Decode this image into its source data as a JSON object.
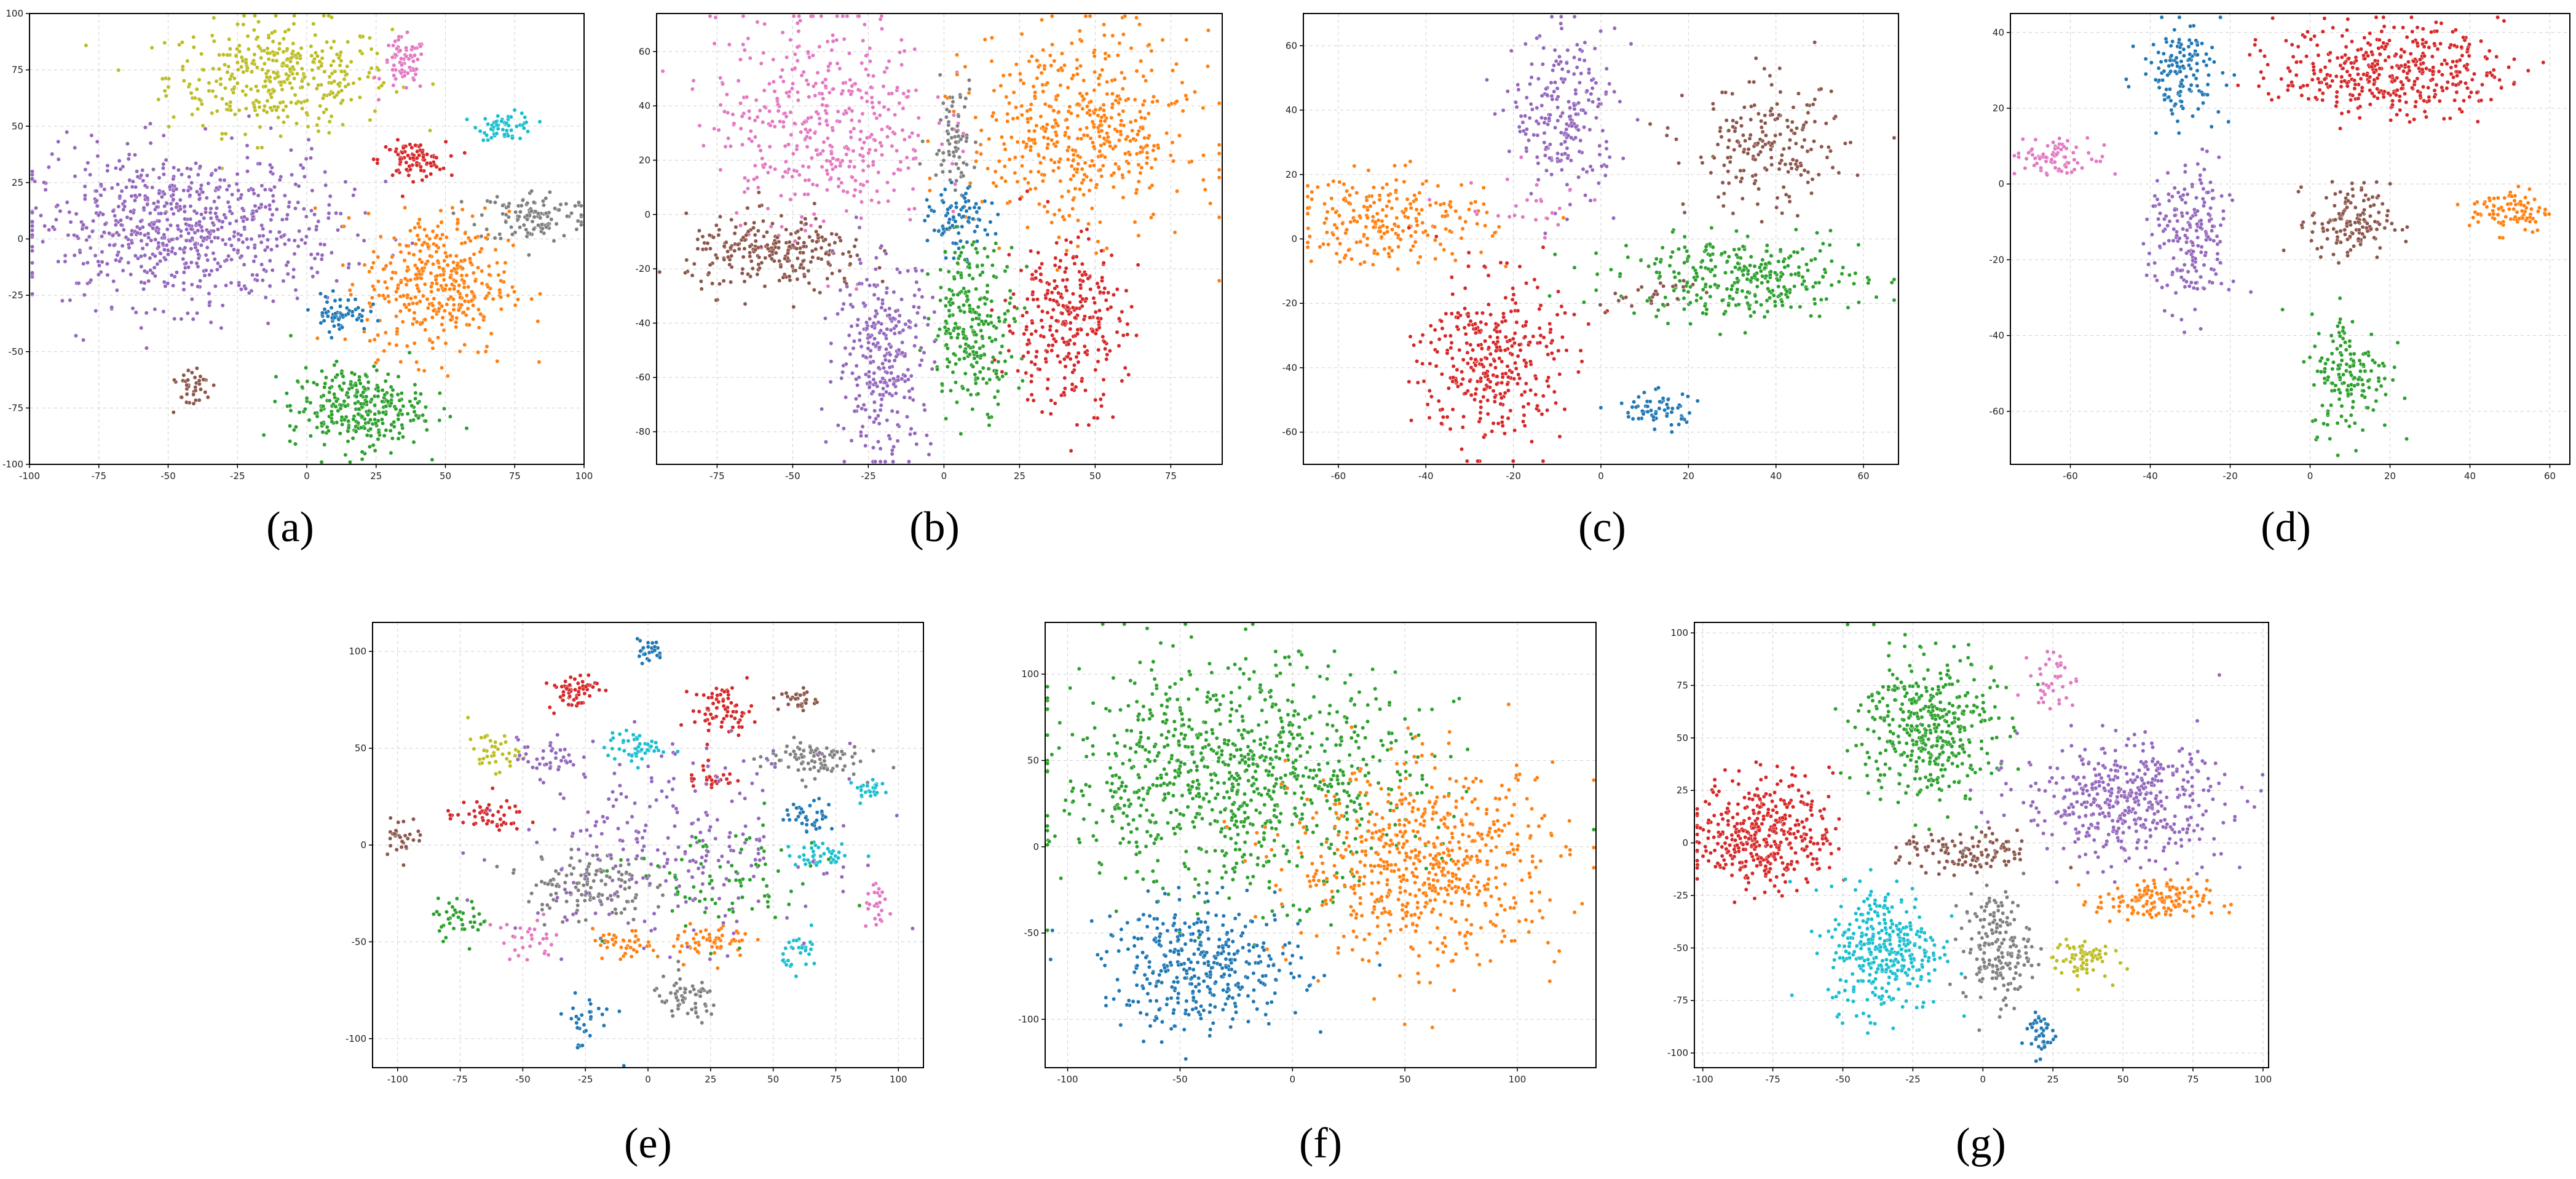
{
  "colors": {
    "blue": "#1f77b4",
    "orange": "#ff7f0e",
    "green": "#2ca02c",
    "red": "#d62728",
    "purple": "#9467bd",
    "brown": "#8c564b",
    "pink": "#e377c2",
    "gray": "#7f7f7f",
    "olive": "#bcbd22",
    "cyan": "#17becf"
  },
  "chart_data": [
    {
      "label": "(a)",
      "type": "scatter",
      "grid": true,
      "xlim": [
        -100,
        100
      ],
      "ylim": [
        -100,
        100
      ],
      "xticks": [
        -100,
        -75,
        -50,
        -25,
        0,
        25,
        50,
        75,
        100
      ],
      "yticks": [
        -100,
        -75,
        -50,
        -25,
        0,
        25,
        50,
        75,
        100
      ],
      "clusters": [
        {
          "color": "olive",
          "x": -10,
          "y": 72,
          "sx": 20,
          "sy": 12,
          "n": 380
        },
        {
          "color": "pink",
          "x": 35,
          "y": 77,
          "sx": 4,
          "sy": 6,
          "n": 70
        },
        {
          "color": "cyan",
          "x": 72,
          "y": 50,
          "sx": 5,
          "sy": 3,
          "n": 60
        },
        {
          "color": "red",
          "x": 38,
          "y": 35,
          "sx": 6,
          "sy": 4,
          "n": 90
        },
        {
          "color": "gray",
          "x": 82,
          "y": 10,
          "sx": 10,
          "sy": 6,
          "n": 120
        },
        {
          "color": "purple",
          "x": -45,
          "y": 5,
          "sx": 28,
          "sy": 17,
          "n": 750
        },
        {
          "color": "orange",
          "x": 47,
          "y": -20,
          "sx": 13,
          "sy": 16,
          "n": 380
        },
        {
          "color": "blue",
          "x": 12,
          "y": -33,
          "sx": 5,
          "sy": 4,
          "n": 60
        },
        {
          "color": "brown",
          "x": -42,
          "y": -65,
          "sx": 4,
          "sy": 5,
          "n": 40
        },
        {
          "color": "green",
          "x": 18,
          "y": -75,
          "sx": 12,
          "sy": 9,
          "n": 300
        }
      ]
    },
    {
      "label": "(b)",
      "type": "scatter",
      "grid": true,
      "xlim": [
        -95,
        92
      ],
      "ylim": [
        -92,
        74
      ],
      "xticks": [
        -75,
        -50,
        -25,
        0,
        25,
        50,
        75
      ],
      "yticks": [
        -80,
        -60,
        -40,
        -20,
        0,
        20,
        40,
        60
      ],
      "clusters": [
        {
          "color": "pink",
          "x": -40,
          "y": 35,
          "sx": 18,
          "sy": 20,
          "n": 450
        },
        {
          "color": "brown",
          "x": -55,
          "y": -15,
          "sx": 15,
          "sy": 7,
          "n": 250
        },
        {
          "color": "gray",
          "x": 3,
          "y": 30,
          "sx": 4,
          "sy": 10,
          "n": 70
        },
        {
          "color": "orange",
          "x": 45,
          "y": 30,
          "sx": 18,
          "sy": 18,
          "n": 500
        },
        {
          "color": "blue",
          "x": 5,
          "y": -3,
          "sx": 5,
          "sy": 6,
          "n": 90
        },
        {
          "color": "green",
          "x": 10,
          "y": -40,
          "sx": 7,
          "sy": 15,
          "n": 250
        },
        {
          "color": "red",
          "x": 40,
          "y": -40,
          "sx": 10,
          "sy": 16,
          "n": 300
        },
        {
          "color": "purple",
          "x": -20,
          "y": -52,
          "sx": 8,
          "sy": 18,
          "n": 300
        }
      ]
    },
    {
      "label": "(c)",
      "type": "scatter",
      "grid": true,
      "xlim": [
        -68,
        68
      ],
      "ylim": [
        -70,
        70
      ],
      "xticks": [
        -60,
        -40,
        -20,
        0,
        20,
        40,
        60
      ],
      "yticks": [
        -60,
        -40,
        -20,
        0,
        20,
        40,
        60
      ],
      "clusters": [
        {
          "color": "purple",
          "x": -8,
          "y": 38,
          "sx": 6,
          "sy": 13,
          "n": 230
        },
        {
          "color": "brown",
          "x": 38,
          "y": 28,
          "sx": 9,
          "sy": 10,
          "n": 200
        },
        {
          "color": "orange",
          "x": -48,
          "y": 6,
          "sx": 11,
          "sy": 7,
          "n": 230
        },
        {
          "color": "green",
          "x": 32,
          "y": -12,
          "sx": 14,
          "sy": 6,
          "n": 320
        },
        {
          "color": "red",
          "x": -25,
          "y": -38,
          "sx": 8,
          "sy": 13,
          "n": 340
        },
        {
          "color": "blue",
          "x": 12,
          "y": -53,
          "sx": 5,
          "sy": 3,
          "n": 60
        },
        {
          "color": "pink",
          "x": -15,
          "y": 10,
          "sx": 8,
          "sy": 6,
          "n": 25
        },
        {
          "color": "brown",
          "x": 10,
          "y": -18,
          "sx": 6,
          "sy": 3,
          "n": 25
        }
      ]
    },
    {
      "label": "(d)",
      "type": "scatter",
      "grid": true,
      "xlim": [
        -75,
        65
      ],
      "ylim": [
        -74,
        45
      ],
      "xticks": [
        -60,
        -40,
        -20,
        0,
        20,
        40,
        60
      ],
      "yticks": [
        -60,
        -40,
        -20,
        0,
        20,
        40
      ],
      "clusters": [
        {
          "color": "blue",
          "x": -32,
          "y": 30,
          "sx": 5,
          "sy": 6,
          "n": 140
        },
        {
          "color": "red",
          "x": 20,
          "y": 30,
          "sx": 14,
          "sy": 6,
          "n": 420
        },
        {
          "color": "pink",
          "x": -63,
          "y": 7,
          "sx": 6,
          "sy": 2.5,
          "n": 80
        },
        {
          "color": "purple",
          "x": -30,
          "y": -15,
          "sx": 5,
          "sy": 10,
          "n": 200
        },
        {
          "color": "brown",
          "x": 10,
          "y": -10,
          "sx": 5,
          "sy": 5,
          "n": 140
        },
        {
          "color": "orange",
          "x": 50,
          "y": -7,
          "sx": 5,
          "sy": 3,
          "n": 90
        },
        {
          "color": "green",
          "x": 10,
          "y": -50,
          "sx": 5,
          "sy": 8,
          "n": 160
        }
      ]
    },
    {
      "label": "(e)",
      "type": "scatter",
      "grid": true,
      "xlim": [
        -110,
        110
      ],
      "ylim": [
        -115,
        115
      ],
      "xticks": [
        -100,
        -75,
        -50,
        -25,
        0,
        25,
        50,
        75,
        100
      ],
      "yticks": [
        -100,
        -50,
        0,
        50,
        100
      ],
      "clusters": [
        {
          "color": "blue",
          "x": 0,
          "y": 100,
          "sx": 3,
          "sy": 3,
          "n": 25
        },
        {
          "color": "red",
          "x": -30,
          "y": 80,
          "sx": 5,
          "sy": 5,
          "n": 60
        },
        {
          "color": "red",
          "x": 30,
          "y": 70,
          "sx": 6,
          "sy": 6,
          "n": 70
        },
        {
          "color": "brown",
          "x": 60,
          "y": 75,
          "sx": 4,
          "sy": 3,
          "n": 30
        },
        {
          "color": "olive",
          "x": -62,
          "y": 48,
          "sx": 5,
          "sy": 5,
          "n": 40
        },
        {
          "color": "cyan",
          "x": -5,
          "y": 50,
          "sx": 6,
          "sy": 4,
          "n": 50
        },
        {
          "color": "gray",
          "x": 65,
          "y": 45,
          "sx": 10,
          "sy": 5,
          "n": 90
        },
        {
          "color": "cyan",
          "x": 88,
          "y": 28,
          "sx": 4,
          "sy": 3,
          "n": 25
        },
        {
          "color": "red",
          "x": -65,
          "y": 15,
          "sx": 8,
          "sy": 4,
          "n": 50
        },
        {
          "color": "purple",
          "x": -40,
          "y": 45,
          "sx": 6,
          "sy": 5,
          "n": 40
        },
        {
          "color": "red",
          "x": 25,
          "y": 35,
          "sx": 5,
          "sy": 4,
          "n": 30
        },
        {
          "color": "blue",
          "x": 65,
          "y": 15,
          "sx": 5,
          "sy": 4,
          "n": 40
        },
        {
          "color": "brown",
          "x": -98,
          "y": 5,
          "sx": 4,
          "sy": 5,
          "n": 30
        },
        {
          "color": "cyan",
          "x": 70,
          "y": -5,
          "sx": 7,
          "sy": 3,
          "n": 40
        },
        {
          "color": "gray",
          "x": -25,
          "y": -20,
          "sx": 12,
          "sy": 10,
          "n": 140
        },
        {
          "color": "green",
          "x": -75,
          "y": -38,
          "sx": 6,
          "sy": 5,
          "n": 40
        },
        {
          "color": "orange",
          "x": -10,
          "y": -52,
          "sx": 6,
          "sy": 4,
          "n": 40
        },
        {
          "color": "orange",
          "x": 25,
          "y": -50,
          "sx": 8,
          "sy": 5,
          "n": 60
        },
        {
          "color": "cyan",
          "x": 62,
          "y": -55,
          "sx": 4,
          "sy": 5,
          "n": 30
        },
        {
          "color": "pink",
          "x": 92,
          "y": -33,
          "sx": 3,
          "sy": 5,
          "n": 25
        },
        {
          "color": "gray",
          "x": 15,
          "y": -80,
          "sx": 7,
          "sy": 6,
          "n": 60
        },
        {
          "color": "purple",
          "x": 10,
          "y": 0,
          "sx": 30,
          "sy": 25,
          "n": 240
        },
        {
          "color": "green",
          "x": 30,
          "y": -20,
          "sx": 20,
          "sy": 15,
          "n": 80
        },
        {
          "color": "blue",
          "x": -25,
          "y": -90,
          "sx": 6,
          "sy": 8,
          "n": 30
        },
        {
          "color": "pink",
          "x": -50,
          "y": -50,
          "sx": 8,
          "sy": 6,
          "n": 30
        }
      ]
    },
    {
      "label": "(f)",
      "type": "scatter",
      "grid": true,
      "xlim": [
        -110,
        135
      ],
      "ylim": [
        -128,
        130
      ],
      "xticks": [
        -100,
        -50,
        0,
        50,
        100
      ],
      "yticks": [
        -100,
        -50,
        0,
        50,
        100
      ],
      "clusters": [
        {
          "color": "green",
          "x": -25,
          "y": 40,
          "sx": 40,
          "sy": 33,
          "n": 950
        },
        {
          "color": "orange",
          "x": 60,
          "y": -10,
          "sx": 30,
          "sy": 28,
          "n": 650
        },
        {
          "color": "blue",
          "x": -40,
          "y": -70,
          "sx": 22,
          "sy": 18,
          "n": 380
        }
      ]
    },
    {
      "label": "(g)",
      "type": "scatter",
      "grid": true,
      "xlim": [
        -103,
        102
      ],
      "ylim": [
        -107,
        105
      ],
      "xticks": [
        -100,
        -75,
        -50,
        -25,
        0,
        25,
        50,
        75,
        100
      ],
      "yticks": [
        -100,
        -75,
        -50,
        -25,
        0,
        25,
        50,
        75,
        100
      ],
      "clusters": [
        {
          "color": "pink",
          "x": 25,
          "y": 78,
          "sx": 4,
          "sy": 8,
          "n": 40
        },
        {
          "color": "green",
          "x": -20,
          "y": 55,
          "sx": 12,
          "sy": 17,
          "n": 420
        },
        {
          "color": "purple",
          "x": 50,
          "y": 20,
          "sx": 18,
          "sy": 14,
          "n": 450
        },
        {
          "color": "red",
          "x": -78,
          "y": 5,
          "sx": 12,
          "sy": 13,
          "n": 400
        },
        {
          "color": "brown",
          "x": -5,
          "y": -5,
          "sx": 12,
          "sy": 5,
          "n": 120
        },
        {
          "color": "orange",
          "x": 60,
          "y": -28,
          "sx": 10,
          "sy": 5,
          "n": 140
        },
        {
          "color": "cyan",
          "x": -35,
          "y": -50,
          "sx": 10,
          "sy": 15,
          "n": 350
        },
        {
          "color": "gray",
          "x": 5,
          "y": -50,
          "sx": 6,
          "sy": 13,
          "n": 180
        },
        {
          "color": "olive",
          "x": 35,
          "y": -55,
          "sx": 5,
          "sy": 5,
          "n": 70
        },
        {
          "color": "blue",
          "x": 20,
          "y": -90,
          "sx": 3,
          "sy": 6,
          "n": 40
        }
      ]
    }
  ]
}
